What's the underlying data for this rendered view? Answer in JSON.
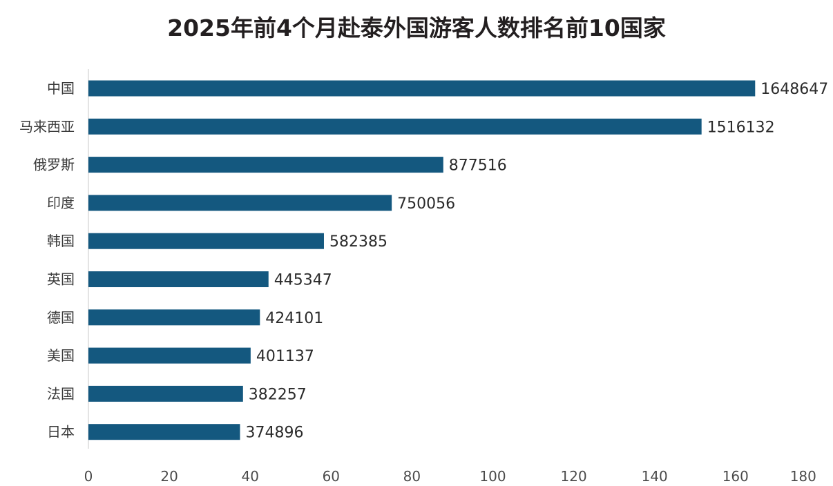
{
  "chart_data": {
    "type": "bar",
    "orientation": "horizontal",
    "title": "2025年前4个月赴泰外国游客人数排名前10国家",
    "categories": [
      "中国",
      "马来西亚",
      "俄罗斯",
      "印度",
      "韩国",
      "英国",
      "德国",
      "美国",
      "法国",
      "日本"
    ],
    "values": [
      1648647,
      1516132,
      877516,
      750056,
      582385,
      445347,
      424101,
      401137,
      382257,
      374896
    ],
    "value_labels": [
      "1648647",
      "1516132",
      "877516",
      "750056",
      "582385",
      "445347",
      "424101",
      "401137",
      "382257",
      "374896"
    ],
    "value_axis_unit": 10000,
    "xticks": [
      "0",
      "20",
      "40",
      "60",
      "80",
      "100",
      "120",
      "140",
      "160",
      "180"
    ],
    "xlim": [
      0,
      180
    ],
    "xlabel": "",
    "ylabel": "",
    "grid": false,
    "legend": "none",
    "bar_color": "#14587f"
  }
}
